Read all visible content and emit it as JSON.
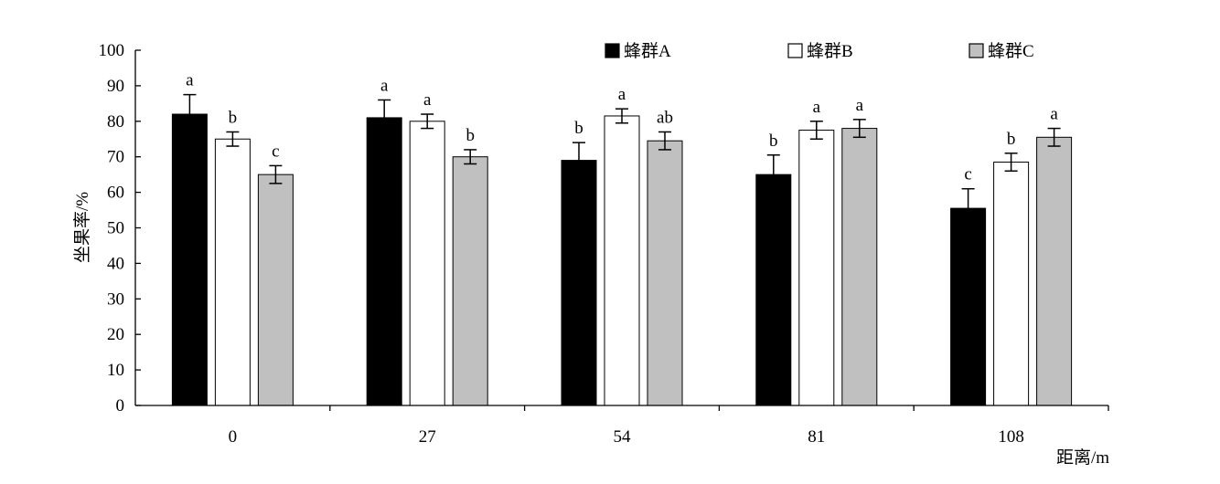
{
  "chart_data": {
    "type": "bar",
    "title": "",
    "xlabel": "距离/m",
    "ylabel": "坐果率/%",
    "ylim": [
      0,
      100
    ],
    "yticks": [
      0,
      10,
      20,
      30,
      40,
      50,
      60,
      70,
      80,
      90,
      100
    ],
    "categories": [
      "0",
      "27",
      "54",
      "81",
      "108"
    ],
    "grid": false,
    "legend": {
      "position": "top-right"
    },
    "series": [
      {
        "name": "蜂群A",
        "color": "#000000",
        "values": [
          82,
          81,
          69,
          65,
          55.5
        ],
        "errors": [
          5.5,
          5,
          5,
          5.5,
          5.5
        ],
        "labels": [
          "a",
          "a",
          "b",
          "b",
          "c"
        ]
      },
      {
        "name": "蜂群B",
        "color": "#ffffff",
        "values": [
          75,
          80,
          81.5,
          77.5,
          68.5
        ],
        "errors": [
          2,
          2,
          2,
          2.5,
          2.5
        ],
        "labels": [
          "b",
          "a",
          "a",
          "a",
          "b"
        ]
      },
      {
        "name": "蜂群C",
        "color": "#c0c0c0",
        "values": [
          65,
          70,
          74.5,
          78,
          75.5
        ],
        "errors": [
          2.5,
          2,
          2.5,
          2.5,
          2.5
        ],
        "labels": [
          "c",
          "b",
          "ab",
          "a",
          "a"
        ]
      }
    ]
  }
}
